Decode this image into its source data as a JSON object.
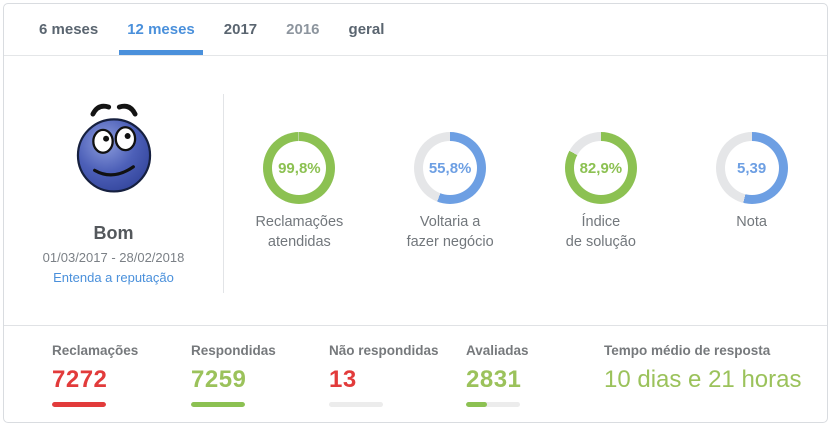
{
  "tabs": [
    {
      "label": "6 meses",
      "active": false
    },
    {
      "label": "12 meses",
      "active": true
    },
    {
      "label": "2017",
      "active": false
    },
    {
      "label": "2016",
      "active": false
    },
    {
      "label": "geral",
      "active": false
    }
  ],
  "reputation": {
    "emoticon": "blue-smiley-face",
    "status_label": "Bom",
    "period": "01/03/2017 - 28/02/2018",
    "link_label": "Entenda a reputação"
  },
  "gauges": [
    {
      "value": "99,8%",
      "pct": 99.8,
      "label_lines": [
        "Reclamações",
        "atendidas"
      ],
      "color": "#8cc152"
    },
    {
      "value": "55,8%",
      "pct": 55.8,
      "label_lines": [
        "Voltaria a",
        "fazer negócio"
      ],
      "color": "#6d9fe3"
    },
    {
      "value": "82,9%",
      "pct": 82.9,
      "label_lines": [
        "Índice",
        "de solução"
      ],
      "color": "#8cc152"
    },
    {
      "value": "5,39",
      "pct": 53.9,
      "label_lines": [
        "Nota"
      ],
      "color": "#6d9fe3"
    }
  ],
  "stats": [
    {
      "label": "Reclamações",
      "value": "7272",
      "value_color": "#e23b3b",
      "bar_pct": 100,
      "bar_color": "#e23b3b"
    },
    {
      "label": "Respondidas",
      "value": "7259",
      "value_color": "#9bc25b",
      "bar_pct": 100,
      "bar_color": "#8cc152"
    },
    {
      "label": "Não respondidas",
      "value": "13",
      "value_color": "#e23b3b",
      "bar_pct": 0,
      "bar_color": "#e23b3b"
    },
    {
      "label": "Avaliadas",
      "value": "2831",
      "value_color": "#9bc25b",
      "bar_pct": 39,
      "bar_color": "#8cc152"
    },
    {
      "label": "Tempo médio de resposta",
      "value": "10 dias e 21 horas",
      "value_color": "#9bc25b",
      "bar_pct": null,
      "bar_color": null
    }
  ],
  "colors": {
    "track": "#e5e6e8",
    "accent_blue": "#4a90db",
    "green": "#8cc152",
    "red": "#e23b3b"
  }
}
